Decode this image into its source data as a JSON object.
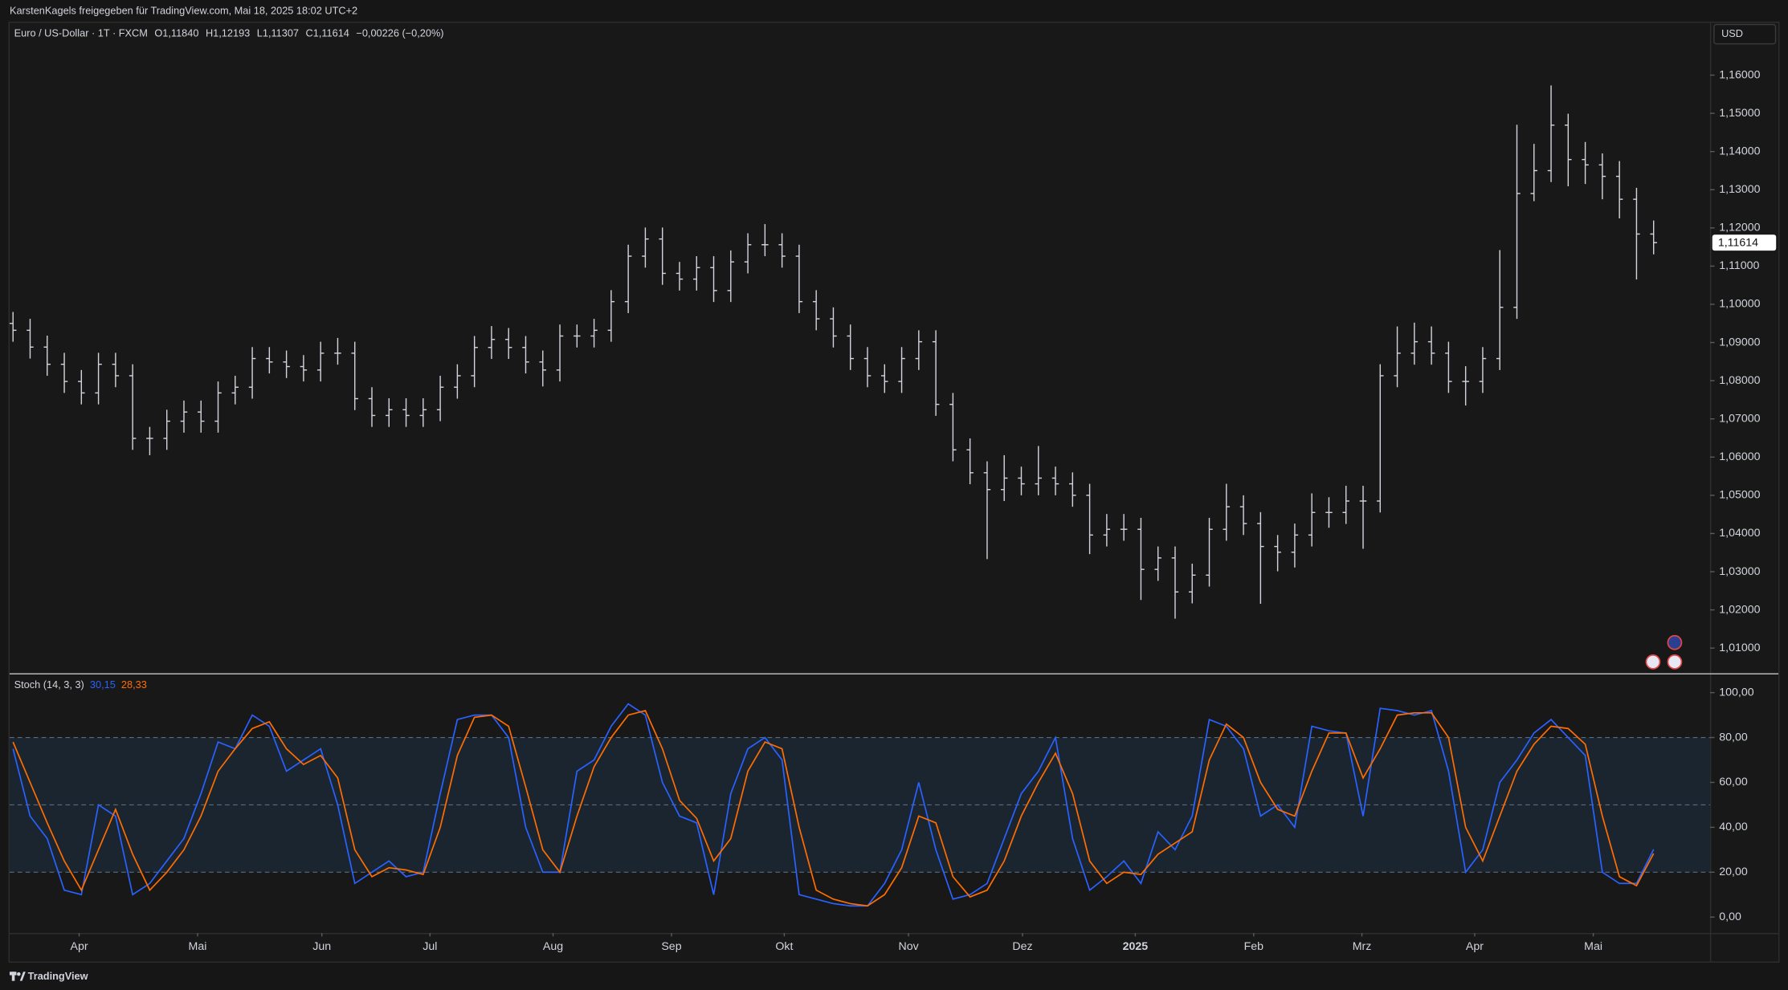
{
  "header": {
    "caption": "KarstenKagels freigegeben für TradingView.com, Mai 18, 2025 18:02 UTC+2"
  },
  "footer": {
    "brand": "TradingView"
  },
  "chart_data": [
    {
      "type": "ohlc",
      "title": "Euro / US-Dollar · 1T · FXCM",
      "ohlc_labels": [
        "O1,11840",
        "H1,12193",
        "L1,11307",
        "C1,11614"
      ],
      "change_label": "−0,00226 (−0,20%)",
      "currency": "USD",
      "color": "#d1d4dc",
      "open": [
        1.095,
        1.0932,
        1.0888,
        1.0843,
        1.0798,
        1.0768,
        1.0843,
        1.0813,
        1.0649,
        1.0649,
        1.0694,
        1.0718,
        1.0694,
        1.0768,
        1.0783,
        1.0858,
        1.0849,
        1.0837,
        1.0828,
        1.0872,
        1.0872,
        1.0753,
        1.0709,
        1.0724,
        1.0709,
        1.0724,
        1.0783,
        1.0813,
        1.0887,
        1.0908,
        1.0887,
        1.0849,
        1.0828,
        1.0917,
        1.0917,
        1.0932,
        1.1007,
        1.1126,
        1.1171,
        1.1081,
        1.1066,
        1.1096,
        1.1036,
        1.1111,
        1.1156,
        1.1156,
        1.1126,
        1.1007,
        1.0962,
        1.0917,
        1.0858,
        1.0813,
        1.0798,
        1.0858,
        1.0902,
        1.0738,
        1.0619,
        1.0559,
        1.0515,
        1.0545,
        1.053,
        1.0545,
        1.053,
        1.05,
        1.0396,
        1.0411,
        1.0411,
        1.0306,
        1.0336,
        1.0247,
        1.0291,
        1.0411,
        1.047,
        1.0426,
        1.0366,
        1.0351,
        1.0396,
        1.0455,
        1.0455,
        1.0485,
        1.0485,
        1.0813,
        1.0872,
        1.0902,
        1.0872,
        1.0798,
        1.0798,
        1.0858,
        1.0992,
        1.129,
        1.135,
        1.1469,
        1.1379,
        1.1365,
        1.1335,
        1.1275,
        1.1184
      ],
      "high": [
        1.098,
        1.0962,
        1.0918,
        1.0873,
        1.0828,
        1.0873,
        1.0873,
        1.0843,
        1.0679,
        1.0724,
        1.0748,
        1.0748,
        1.0798,
        1.0813,
        1.0888,
        1.0888,
        1.0879,
        1.0867,
        1.0902,
        1.0912,
        1.0902,
        1.0783,
        1.0754,
        1.0754,
        1.0754,
        1.0813,
        1.0843,
        1.0917,
        1.0943,
        1.0938,
        1.0917,
        1.0879,
        1.0947,
        1.0947,
        1.0962,
        1.1037,
        1.1156,
        1.1201,
        1.1201,
        1.1111,
        1.1126,
        1.1126,
        1.1141,
        1.1186,
        1.121,
        1.1186,
        1.1156,
        1.1037,
        1.0992,
        1.0947,
        1.0888,
        1.0843,
        1.0888,
        1.0932,
        1.0932,
        1.0768,
        1.0649,
        1.0589,
        1.0605,
        1.0575,
        1.0629,
        1.0575,
        1.056,
        1.053,
        1.0451,
        1.0451,
        1.0441,
        1.0366,
        1.0366,
        1.0321,
        1.0441,
        1.053,
        1.05,
        1.0456,
        1.0396,
        1.0426,
        1.0505,
        1.0495,
        1.0525,
        1.0525,
        1.0843,
        1.0942,
        1.0952,
        1.0942,
        1.0902,
        1.0838,
        1.0888,
        1.1142,
        1.147,
        1.142,
        1.1573,
        1.1499,
        1.1425,
        1.1395,
        1.1375,
        1.1305,
        1.12193
      ],
      "low": [
        1.0902,
        1.0858,
        1.0813,
        1.0768,
        1.0738,
        1.0738,
        1.0783,
        1.0619,
        1.0605,
        1.0619,
        1.0664,
        1.0664,
        1.0664,
        1.0738,
        1.0753,
        1.0819,
        1.0807,
        1.0798,
        1.0798,
        1.0842,
        1.0723,
        1.0679,
        1.0679,
        1.0679,
        1.0679,
        1.0694,
        1.0753,
        1.0783,
        1.0857,
        1.0857,
        1.0819,
        1.0785,
        1.0798,
        1.0887,
        1.0887,
        1.0902,
        1.0977,
        1.1096,
        1.1051,
        1.1036,
        1.1036,
        1.1006,
        1.1006,
        1.1081,
        1.1126,
        1.1096,
        1.0977,
        1.0932,
        1.0887,
        1.0828,
        1.0783,
        1.0768,
        1.0768,
        1.0828,
        1.0708,
        1.0589,
        1.0529,
        1.0333,
        1.0485,
        1.05,
        1.05,
        1.05,
        1.047,
        1.0346,
        1.0366,
        1.0381,
        1.0226,
        1.0276,
        1.0177,
        1.0217,
        1.0261,
        1.0381,
        1.0396,
        1.0216,
        1.0301,
        1.0311,
        1.0366,
        1.0415,
        1.0425,
        1.036,
        1.0455,
        1.0783,
        1.0842,
        1.0842,
        1.0768,
        1.0735,
        1.0768,
        1.0828,
        1.0962,
        1.127,
        1.132,
        1.1309,
        1.1315,
        1.1275,
        1.1225,
        1.1065,
        1.11307
      ],
      "close": [
        1.0932,
        1.0888,
        1.0843,
        1.0798,
        1.0768,
        1.0843,
        1.0813,
        1.0649,
        1.0649,
        1.0694,
        1.0718,
        1.0694,
        1.0768,
        1.0783,
        1.0858,
        1.0849,
        1.0837,
        1.0828,
        1.0872,
        1.0872,
        1.0753,
        1.0709,
        1.0724,
        1.0709,
        1.0724,
        1.0783,
        1.0813,
        1.0887,
        1.0908,
        1.0887,
        1.0849,
        1.0828,
        1.0917,
        1.0917,
        1.0932,
        1.1007,
        1.1126,
        1.1171,
        1.1081,
        1.1066,
        1.1096,
        1.1036,
        1.1111,
        1.1156,
        1.1156,
        1.1126,
        1.1007,
        1.0962,
        1.0917,
        1.0858,
        1.0813,
        1.0798,
        1.0858,
        1.0902,
        1.0738,
        1.0619,
        1.0559,
        1.0515,
        1.0545,
        1.053,
        1.0545,
        1.053,
        1.05,
        1.0396,
        1.0411,
        1.0411,
        1.0306,
        1.0336,
        1.0247,
        1.0291,
        1.0411,
        1.047,
        1.0426,
        1.0366,
        1.0351,
        1.0396,
        1.0455,
        1.0455,
        1.0485,
        1.0485,
        1.0813,
        1.0872,
        1.0902,
        1.0872,
        1.0798,
        1.0798,
        1.0858,
        1.0992,
        1.129,
        1.135,
        1.1469,
        1.1379,
        1.1365,
        1.1335,
        1.1275,
        1.1184,
        1.11614
      ],
      "last_price": {
        "value": 1.11614,
        "label": "1,11614"
      },
      "xlim": [
        -0.2,
        99.3
      ],
      "ylim": [
        1.0034,
        1.1737
      ],
      "yticks": [
        {
          "value": 1.01,
          "label": "1,01000"
        },
        {
          "value": 1.02,
          "label": "1,02000"
        },
        {
          "value": 1.03,
          "label": "1,03000"
        },
        {
          "value": 1.04,
          "label": "1,04000"
        },
        {
          "value": 1.05,
          "label": "1,05000"
        },
        {
          "value": 1.06,
          "label": "1,06000"
        },
        {
          "value": 1.07,
          "label": "1,07000"
        },
        {
          "value": 1.08,
          "label": "1,08000"
        },
        {
          "value": 1.09,
          "label": "1,09000"
        },
        {
          "value": 1.1,
          "label": "1,10000"
        },
        {
          "value": 1.11,
          "label": "1,11000"
        },
        {
          "value": 1.12,
          "label": "1,12000"
        },
        {
          "value": 1.13,
          "label": "1,13000"
        },
        {
          "value": 1.14,
          "label": "1,14000"
        },
        {
          "value": 1.15,
          "label": "1,15000"
        },
        {
          "value": 1.16,
          "label": "1,16000"
        }
      ]
    },
    {
      "type": "line",
      "title": "Stoch (14, 3, 3)",
      "series": [
        {
          "color": "#2962ff",
          "value_label": "30,15",
          "values": [
            75,
            45,
            35,
            12,
            10,
            50,
            45,
            10,
            15,
            25,
            35,
            55,
            78,
            75,
            90,
            85,
            65,
            70,
            75,
            50,
            15,
            20,
            25,
            18,
            20,
            55,
            88,
            90,
            90,
            80,
            40,
            20,
            20,
            65,
            70,
            85,
            95,
            90,
            60,
            45,
            42,
            10,
            55,
            75,
            80,
            70,
            10,
            8,
            6,
            5,
            5,
            15,
            30,
            60,
            30,
            8,
            10,
            15,
            35,
            55,
            65,
            80,
            35,
            12,
            18,
            25,
            15,
            38,
            30,
            45,
            88,
            85,
            75,
            45,
            50,
            40,
            85,
            83,
            82,
            45,
            93,
            92,
            90,
            92,
            65,
            20,
            30,
            60,
            70,
            82,
            88,
            80,
            72,
            20,
            15,
            15,
            30.15
          ]
        },
        {
          "color": "#ff6d00",
          "value_label": "28,33",
          "values": [
            78,
            60,
            42,
            25,
            12,
            30,
            48,
            28,
            12,
            20,
            30,
            45,
            65,
            75,
            84,
            87,
            75,
            68,
            72,
            62,
            30,
            18,
            22,
            21,
            19,
            40,
            72,
            89,
            90,
            85,
            58,
            30,
            20,
            45,
            67,
            80,
            90,
            92,
            75,
            52,
            44,
            25,
            35,
            65,
            78,
            75,
            40,
            12,
            8,
            6,
            5,
            10,
            22,
            45,
            42,
            18,
            9,
            12,
            25,
            45,
            60,
            73,
            55,
            25,
            15,
            20,
            19,
            28,
            33,
            38,
            70,
            86,
            80,
            60,
            48,
            45,
            65,
            82,
            82,
            62,
            75,
            90,
            91,
            91,
            80,
            40,
            25,
            45,
            65,
            77,
            85,
            84,
            77,
            45,
            18,
            14,
            28.33
          ]
        }
      ],
      "bands": {
        "lower": 20,
        "middle": 50,
        "upper": 80
      },
      "band_fill": "#1b2530",
      "xlim": [
        -0.2,
        99.3
      ],
      "ylim": [
        -7.1,
        107.6
      ],
      "yticks": [
        {
          "value": 0,
          "label": "0,00"
        },
        {
          "value": 20,
          "label": "20,00"
        },
        {
          "value": 40,
          "label": "40,00"
        },
        {
          "value": 60,
          "label": "60,00"
        },
        {
          "value": 80,
          "label": "80,00"
        },
        {
          "value": 100,
          "label": "100,00"
        }
      ],
      "xticks": [
        {
          "value": 3.87,
          "label": "Apr"
        },
        {
          "value": 10.8,
          "label": "Mai"
        },
        {
          "value": 18.07,
          "label": "Jun"
        },
        {
          "value": 24.4,
          "label": "Jul"
        },
        {
          "value": 31.6,
          "label": "Aug"
        },
        {
          "value": 38.53,
          "label": "Sep"
        },
        {
          "value": 45.13,
          "label": "Okt"
        },
        {
          "value": 52.4,
          "label": "Nov"
        },
        {
          "value": 59.07,
          "label": "Dez"
        },
        {
          "value": 65.67,
          "label": "2025",
          "bold": true
        },
        {
          "value": 72.6,
          "label": "Feb"
        },
        {
          "value": 78.93,
          "label": "Mrz"
        },
        {
          "value": 85.53,
          "label": "Apr"
        },
        {
          "value": 92.47,
          "label": "Mai"
        }
      ]
    }
  ]
}
